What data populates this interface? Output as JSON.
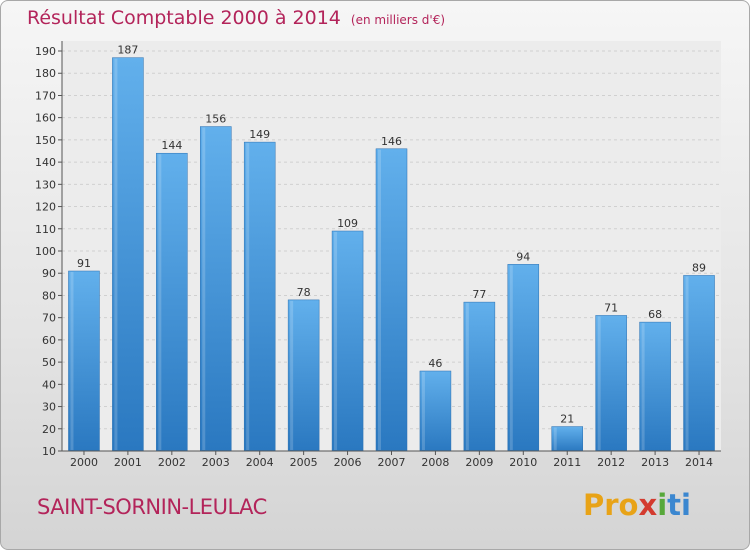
{
  "title": "Résultat Comptable 2000 à 2014",
  "unit": "(en milliers d'€)",
  "commune": "SAINT-SORNIN-LEULAC",
  "logo": [
    "Pro",
    "x",
    "i",
    "ti"
  ],
  "colors": {
    "bar": "#5aaae8",
    "bar_dark": "#2f7cc4",
    "title": "#b3245a"
  },
  "chart_data": {
    "type": "bar",
    "title": "Résultat Comptable 2000 à 2014",
    "ylabel": "(en milliers d'€)",
    "categories": [
      "2000",
      "2001",
      "2002",
      "2003",
      "2004",
      "2005",
      "2006",
      "2007",
      "2008",
      "2009",
      "2010",
      "2011",
      "2012",
      "2013",
      "2014"
    ],
    "values": [
      91,
      187,
      144,
      156,
      149,
      78,
      109,
      146,
      46,
      77,
      94,
      21,
      71,
      68,
      89
    ],
    "ylim": [
      10,
      190
    ],
    "yticks": [
      10,
      20,
      30,
      40,
      50,
      60,
      70,
      80,
      90,
      100,
      110,
      120,
      130,
      140,
      150,
      160,
      170,
      180,
      190
    ],
    "grid": true
  }
}
